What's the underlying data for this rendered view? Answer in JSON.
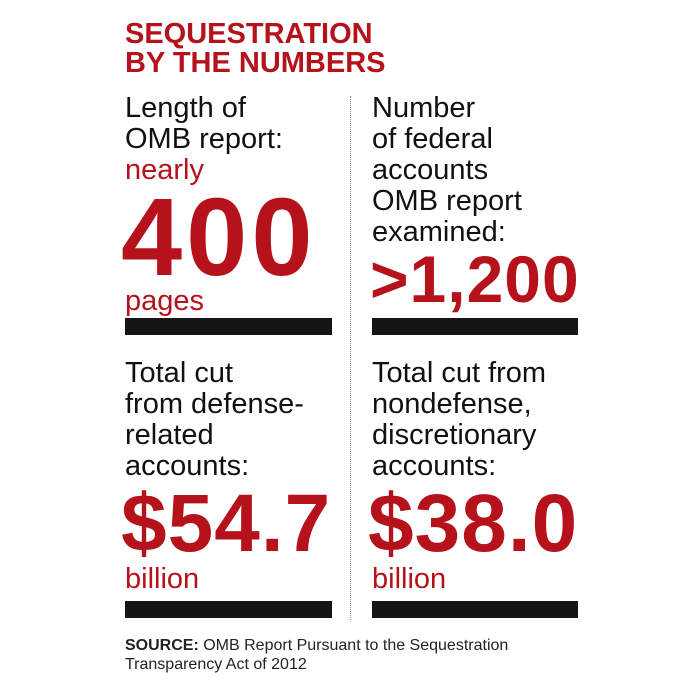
{
  "header": {
    "title": [
      "SEQUESTRATION",
      "BY THE NUMBERS"
    ]
  },
  "cells": [
    {
      "label": [
        "Length of",
        "OMB report:"
      ],
      "prefix": "nearly",
      "figure": "400",
      "unit": "pages"
    },
    {
      "label": [
        "Number",
        "of federal",
        "accounts",
        "OMB report",
        "examined:"
      ],
      "figure": ">1,200"
    },
    {
      "label": [
        "Total cut",
        "from defense-",
        "related",
        "accounts:"
      ],
      "figure": "$54.7",
      "unit": "billion"
    },
    {
      "label": [
        "Total cut from",
        "nondefense,",
        "discretionary",
        "accounts:"
      ],
      "figure": "$38.0",
      "unit": "billion"
    }
  ],
  "source": {
    "lead": "SOURCE:",
    "text": [
      "OMB Report Pursuant to the Sequestration",
      "Transparency Act of 2012"
    ]
  }
}
